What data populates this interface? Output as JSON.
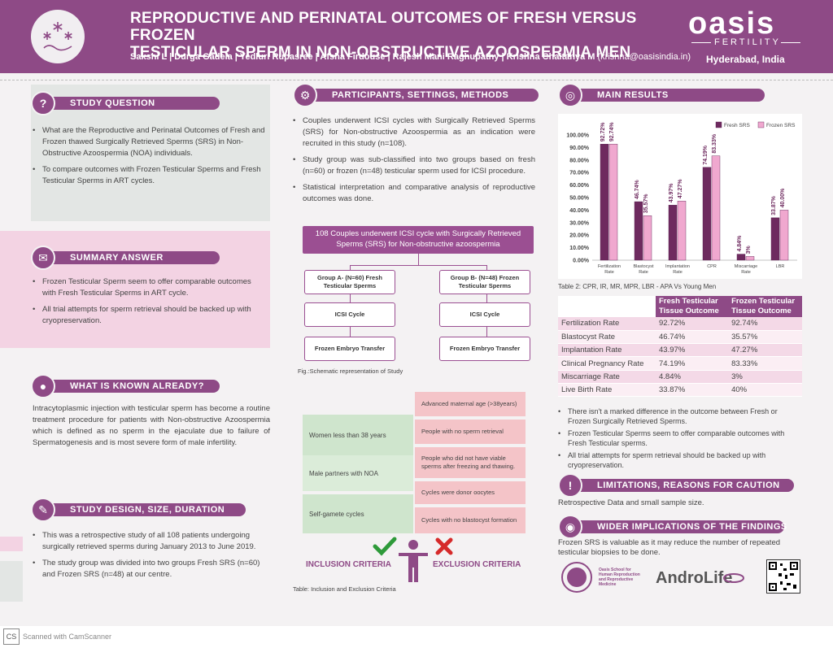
{
  "header": {
    "title_line1": "REPRODUCTIVE AND PERINATAL OUTCOMES OF FRESH VERSUS FROZEN",
    "title_line2": "TESTICULAR SPERM IN NON-OBSTRUCTIVE AZOOSPERMIA MEN",
    "authors": "Sakshi L | Durga Gadela | Yedluri Rupasree | Afsha Firdouse | Rajesh Mani Raghupathy | Krishna Chaitanya M",
    "email": "(krishna@oasisindia.in)",
    "brand": "oasis",
    "brand_sub": "FERTILITY",
    "city": "Hyderabad, India"
  },
  "study_question": {
    "heading": "STUDY QUESTION",
    "items": [
      "What are the Reproductive and Perinatal Outcomes of Fresh and Frozen thawed Surgically Retrieved Sperms (SRS) in Non-Obstructive Azoospermia (NOA) individuals.",
      "To compare outcomes with Frozen Testicular Sperms and Fresh Testicular Sperms in ART cycles."
    ]
  },
  "summary_answer": {
    "heading": "SUMMARY ANSWER",
    "items": [
      "Frozen Testicular Sperm seem to offer comparable outcomes with Fresh Testicular Sperms in ART cycle.",
      "All trial attempts for sperm retrieval should be backed up with cryopreservation."
    ]
  },
  "known_already": {
    "heading": "WHAT IS KNOWN ALREADY?",
    "text": "Intracytoplasmic injection with testicular sperm has become a routine treatment procedure for patients with Non-obstructive Azoospermia which is defined as no sperm in the ejaculate due to failure of Spermatogenesis and is most severe form of male infertility."
  },
  "study_design": {
    "heading": "STUDY DESIGN, SIZE, DURATION",
    "items": [
      "This was a retrospective study of all 108 patients undergoing surgically retrieved sperms during January 2013 to June 2019.",
      "The study group was divided into two groups Fresh SRS (n=60) and Frozen SRS (n=48) at our centre."
    ]
  },
  "participants": {
    "heading": "PARTICIPANTS, SETTINGS, METHODS",
    "items": [
      "Couples underwent ICSI cycles with Surgically Retrieved Sperms (SRS) for Non-obstructive Azoospermia as an indication were recruited in this study (n=108).",
      "Study group was sub-classified into two groups based on fresh (n=60) or frozen (n=48) testicular sperm used for ICSI procedure.",
      "Statistical interpretation and comparative analysis of reproductive outcomes was done."
    ]
  },
  "flow": {
    "top": "108 Couples underwent ICSI cycle with Surgically Retrieved Sperms (SRS) for Non-obstructive azoospermia",
    "group_a": "Group A- (N=60) Fresh Testicular Sperms",
    "group_b": "Group B- (N=48) Frozen Testicular Sperms",
    "icsi": "ICSI Cycle",
    "transfer": "Frozen Embryo Transfer",
    "caption": "Fig.:Schematic representation of Study"
  },
  "criteria": {
    "inclusion": [
      "Women less than 38 years",
      "Male partners with NOA",
      "Self-gamete cycles"
    ],
    "exclusion": [
      "Advanced maternal age (>38years)",
      "People with no sperm retrieval",
      "People who did not have viable sperms after freezing and thawing.",
      "Cycles were donor oocytes",
      "Cycles with no blastocyst formation"
    ],
    "inclusion_label": "INCLUSION CRITERIA",
    "exclusion_label": "EXCLUSION CRITERIA",
    "caption": "Table: Inclusion and Exclusion Criteria"
  },
  "main_results": {
    "heading": "MAIN RESULTS",
    "chart_caption": "Table 2: CPR, IR, MR, MPR, LBR  - APA Vs Young Men",
    "table_headers": [
      "",
      "Fresh Testicular Tissue Outcome",
      "Frozen Testicular Tissue Outcome"
    ],
    "rows": [
      [
        "Fertilization Rate",
        "92.72%",
        "92.74%"
      ],
      [
        "Blastocyst Rate",
        "46.74%",
        "35.57%"
      ],
      [
        "Implantation Rate",
        "43.97%",
        "47.27%"
      ],
      [
        "Clinical Pregnancy Rate",
        "74.19%",
        "83.33%"
      ],
      [
        "Miscarriage Rate",
        "4.84%",
        "3%"
      ],
      [
        "Live Birth Rate",
        "33.87%",
        "40%"
      ]
    ],
    "items": [
      "There isn't a marked difference in the outcome between Fresh or Frozen Surgically Retrieved Sperms.",
      "Frozen Testicular Sperms seem to offer comparable outcomes with Fresh Testicular sperms.",
      "All trial attempts for sperm retrieval should be backed up with cryopreservation."
    ]
  },
  "limitations": {
    "heading": "LIMITATIONS, REASONS FOR CAUTION",
    "text": "Retrospective Data and small sample size."
  },
  "wider": {
    "heading": "WIDER IMPLICATIONS OF THE FINDINGS",
    "text": "Frozen SRS is valuable as it may reduce the number of repeated testicular biopsies to be done."
  },
  "footer": {
    "school": "Oasis School for Human Reproduction and Reproductive Medicine",
    "androlife": "AndroLife",
    "scanner": "Scanned with CamScanner"
  },
  "chart_data": {
    "type": "bar",
    "categories": [
      "Fertilization Rate",
      "Blastocyst Rate",
      "Implantation Rate",
      "CPR",
      "Miscarriage Rate",
      "LBR"
    ],
    "series": [
      {
        "name": "Fresh SRS",
        "values": [
          92.72,
          46.74,
          43.97,
          74.19,
          4.84,
          33.87
        ],
        "labels": [
          "92.72%",
          "46.74%",
          "43.97%",
          "74.19%",
          "4.84%",
          "33.87%"
        ],
        "color": "#6e2a5f"
      },
      {
        "name": "Frozen SRS",
        "values": [
          92.74,
          35.57,
          47.27,
          83.33,
          3,
          40
        ],
        "labels": [
          "92.74%",
          "35.57%",
          "47.27%",
          "83.33%",
          "3%",
          "40.00%"
        ],
        "color": "#f0a8cf"
      }
    ],
    "yticks": [
      "0.00%",
      "10.00%",
      "20.00%",
      "30.00%",
      "40.00%",
      "50.00%",
      "60.00%",
      "70.00%",
      "80.00%",
      "90.00%",
      "100.00%"
    ],
    "ylim": [
      0,
      100
    ],
    "legend": "top-right",
    "grid": false
  }
}
